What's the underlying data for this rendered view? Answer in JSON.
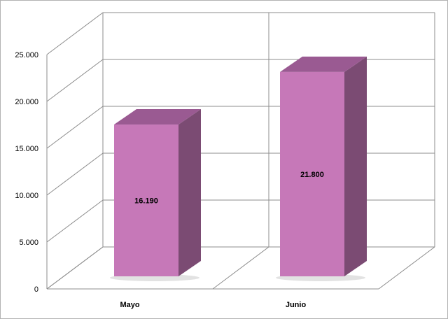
{
  "chart_data": {
    "type": "bar",
    "categories": [
      "Mayo",
      "Junio"
    ],
    "values": [
      16190,
      21800
    ],
    "data_labels": [
      "16.190",
      "21.800"
    ],
    "ylim": [
      0,
      25000
    ],
    "yticks": [
      0,
      5000,
      10000,
      15000,
      20000,
      25000
    ],
    "ytick_labels": [
      "0",
      "5.000",
      "10.000",
      "15.000",
      "20.000",
      "25.000"
    ],
    "title": "",
    "xlabel": "",
    "ylabel": "",
    "grid": true,
    "legend": "none",
    "colors": {
      "bar_front": "#c678b8",
      "bar_top": "#9a5a92",
      "bar_side": "#7b4b73",
      "gridline": "#8c8c8c",
      "frame": "#b3b3b3"
    }
  }
}
